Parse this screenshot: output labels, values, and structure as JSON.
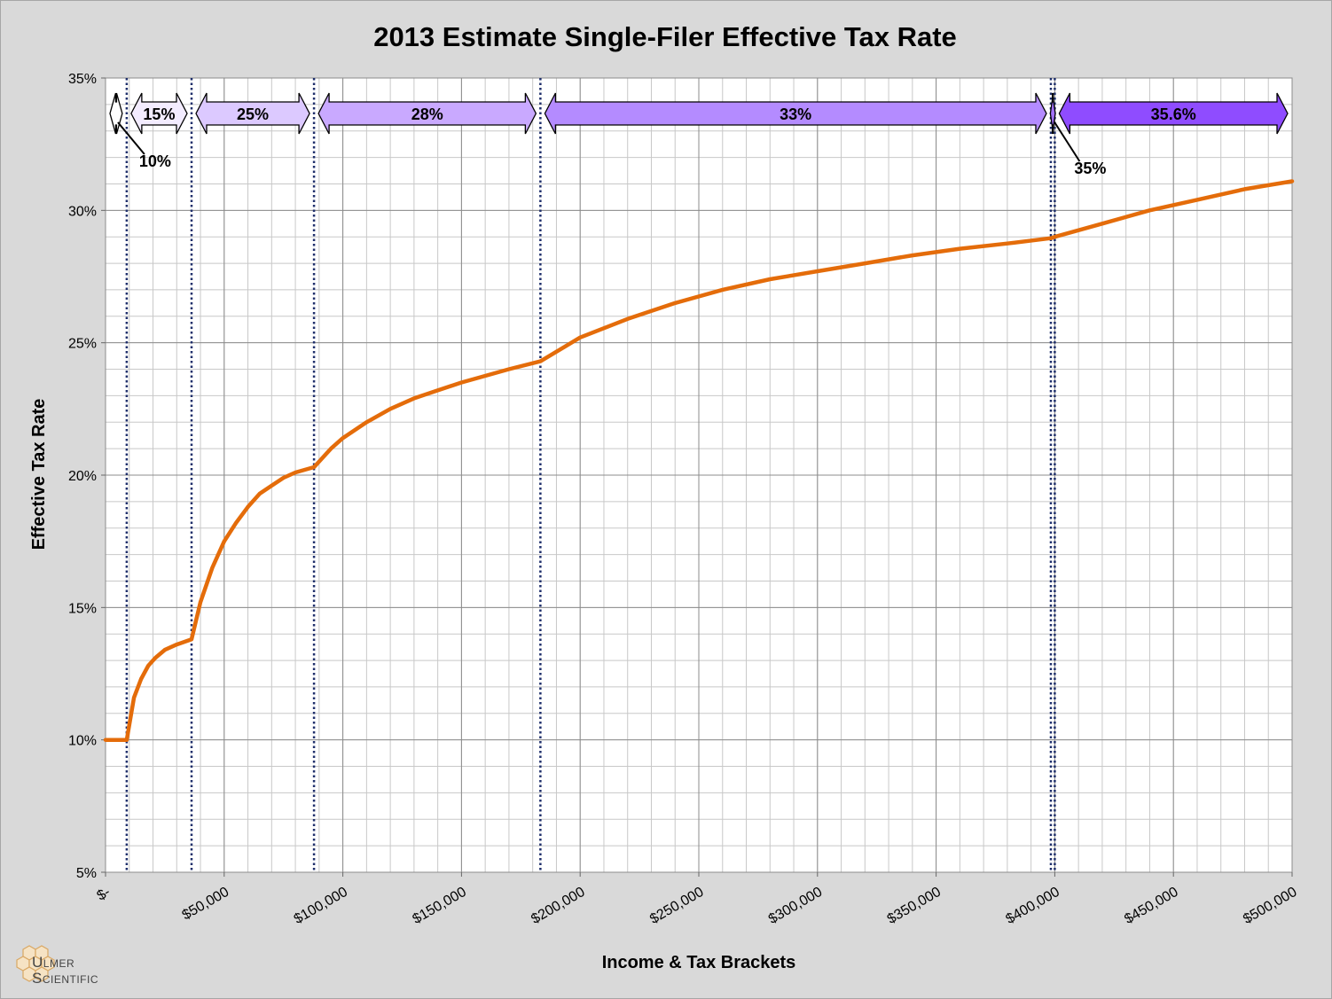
{
  "chart_data": {
    "type": "line",
    "title": "2013 Estimate Single-Filer Effective Tax Rate",
    "xlabel": "Income & Tax Brackets",
    "ylabel": "Effective Tax Rate",
    "xlim": [
      0,
      500000
    ],
    "ylim": [
      5,
      35
    ],
    "x_ticks": [
      0,
      50000,
      100000,
      150000,
      200000,
      250000,
      300000,
      350000,
      400000,
      450000,
      500000
    ],
    "x_tick_labels": [
      "$-",
      "$50,000",
      "$100,000",
      "$150,000",
      "$200,000",
      "$250,000",
      "$300,000",
      "$350,000",
      "$400,000",
      "$450,000",
      "$500,000"
    ],
    "y_ticks": [
      5,
      10,
      15,
      20,
      25,
      30,
      35
    ],
    "y_tick_labels": [
      "5%",
      "10%",
      "15%",
      "20%",
      "25%",
      "30%",
      "35%"
    ],
    "grid": true,
    "line_color": "#e46c0a",
    "bracket_boundaries": [
      8925,
      36250,
      87850,
      183250,
      398350,
      400000
    ],
    "brackets": [
      {
        "label": "10%",
        "from": 0,
        "to": 8925,
        "fill": "#ffffff",
        "callout": true
      },
      {
        "label": "15%",
        "from": 8925,
        "to": 36250,
        "fill": "#f3ecff"
      },
      {
        "label": "25%",
        "from": 36250,
        "to": 87850,
        "fill": "#dcc9ff"
      },
      {
        "label": "28%",
        "from": 87850,
        "to": 183250,
        "fill": "#c9a9ff"
      },
      {
        "label": "33%",
        "from": 183250,
        "to": 398350,
        "fill": "#b48bff"
      },
      {
        "label": "35%",
        "from": 398350,
        "to": 400000,
        "fill": "#a373ff",
        "callout": true
      },
      {
        "label": "35.6%",
        "from": 400000,
        "to": 500000,
        "fill": "#8f4cff"
      }
    ],
    "series": [
      {
        "x": [
          0,
          8925,
          12000,
          15000,
          18000,
          21000,
          25000,
          30000,
          36250,
          40000,
          45000,
          50000,
          55000,
          60000,
          65000,
          70000,
          75000,
          80000,
          87850,
          95000,
          100000,
          110000,
          120000,
          130000,
          140000,
          150000,
          160000,
          170000,
          183250,
          200000,
          220000,
          240000,
          260000,
          280000,
          300000,
          320000,
          340000,
          360000,
          380000,
          398350,
          400000,
          420000,
          440000,
          460000,
          480000,
          500000
        ],
        "y": [
          10.0,
          10.0,
          11.6,
          12.3,
          12.8,
          13.1,
          13.4,
          13.6,
          13.8,
          15.2,
          16.5,
          17.5,
          18.2,
          18.8,
          19.3,
          19.6,
          19.9,
          20.1,
          20.3,
          21.0,
          21.4,
          22.0,
          22.5,
          22.9,
          23.2,
          23.5,
          23.75,
          24.0,
          24.3,
          25.2,
          25.9,
          26.5,
          27.0,
          27.4,
          27.7,
          28.0,
          28.3,
          28.55,
          28.75,
          28.95,
          29.0,
          29.5,
          30.0,
          30.4,
          30.8,
          31.1
        ]
      }
    ]
  },
  "logo": {
    "line1": "Ulmer",
    "line2": "Scientific"
  }
}
